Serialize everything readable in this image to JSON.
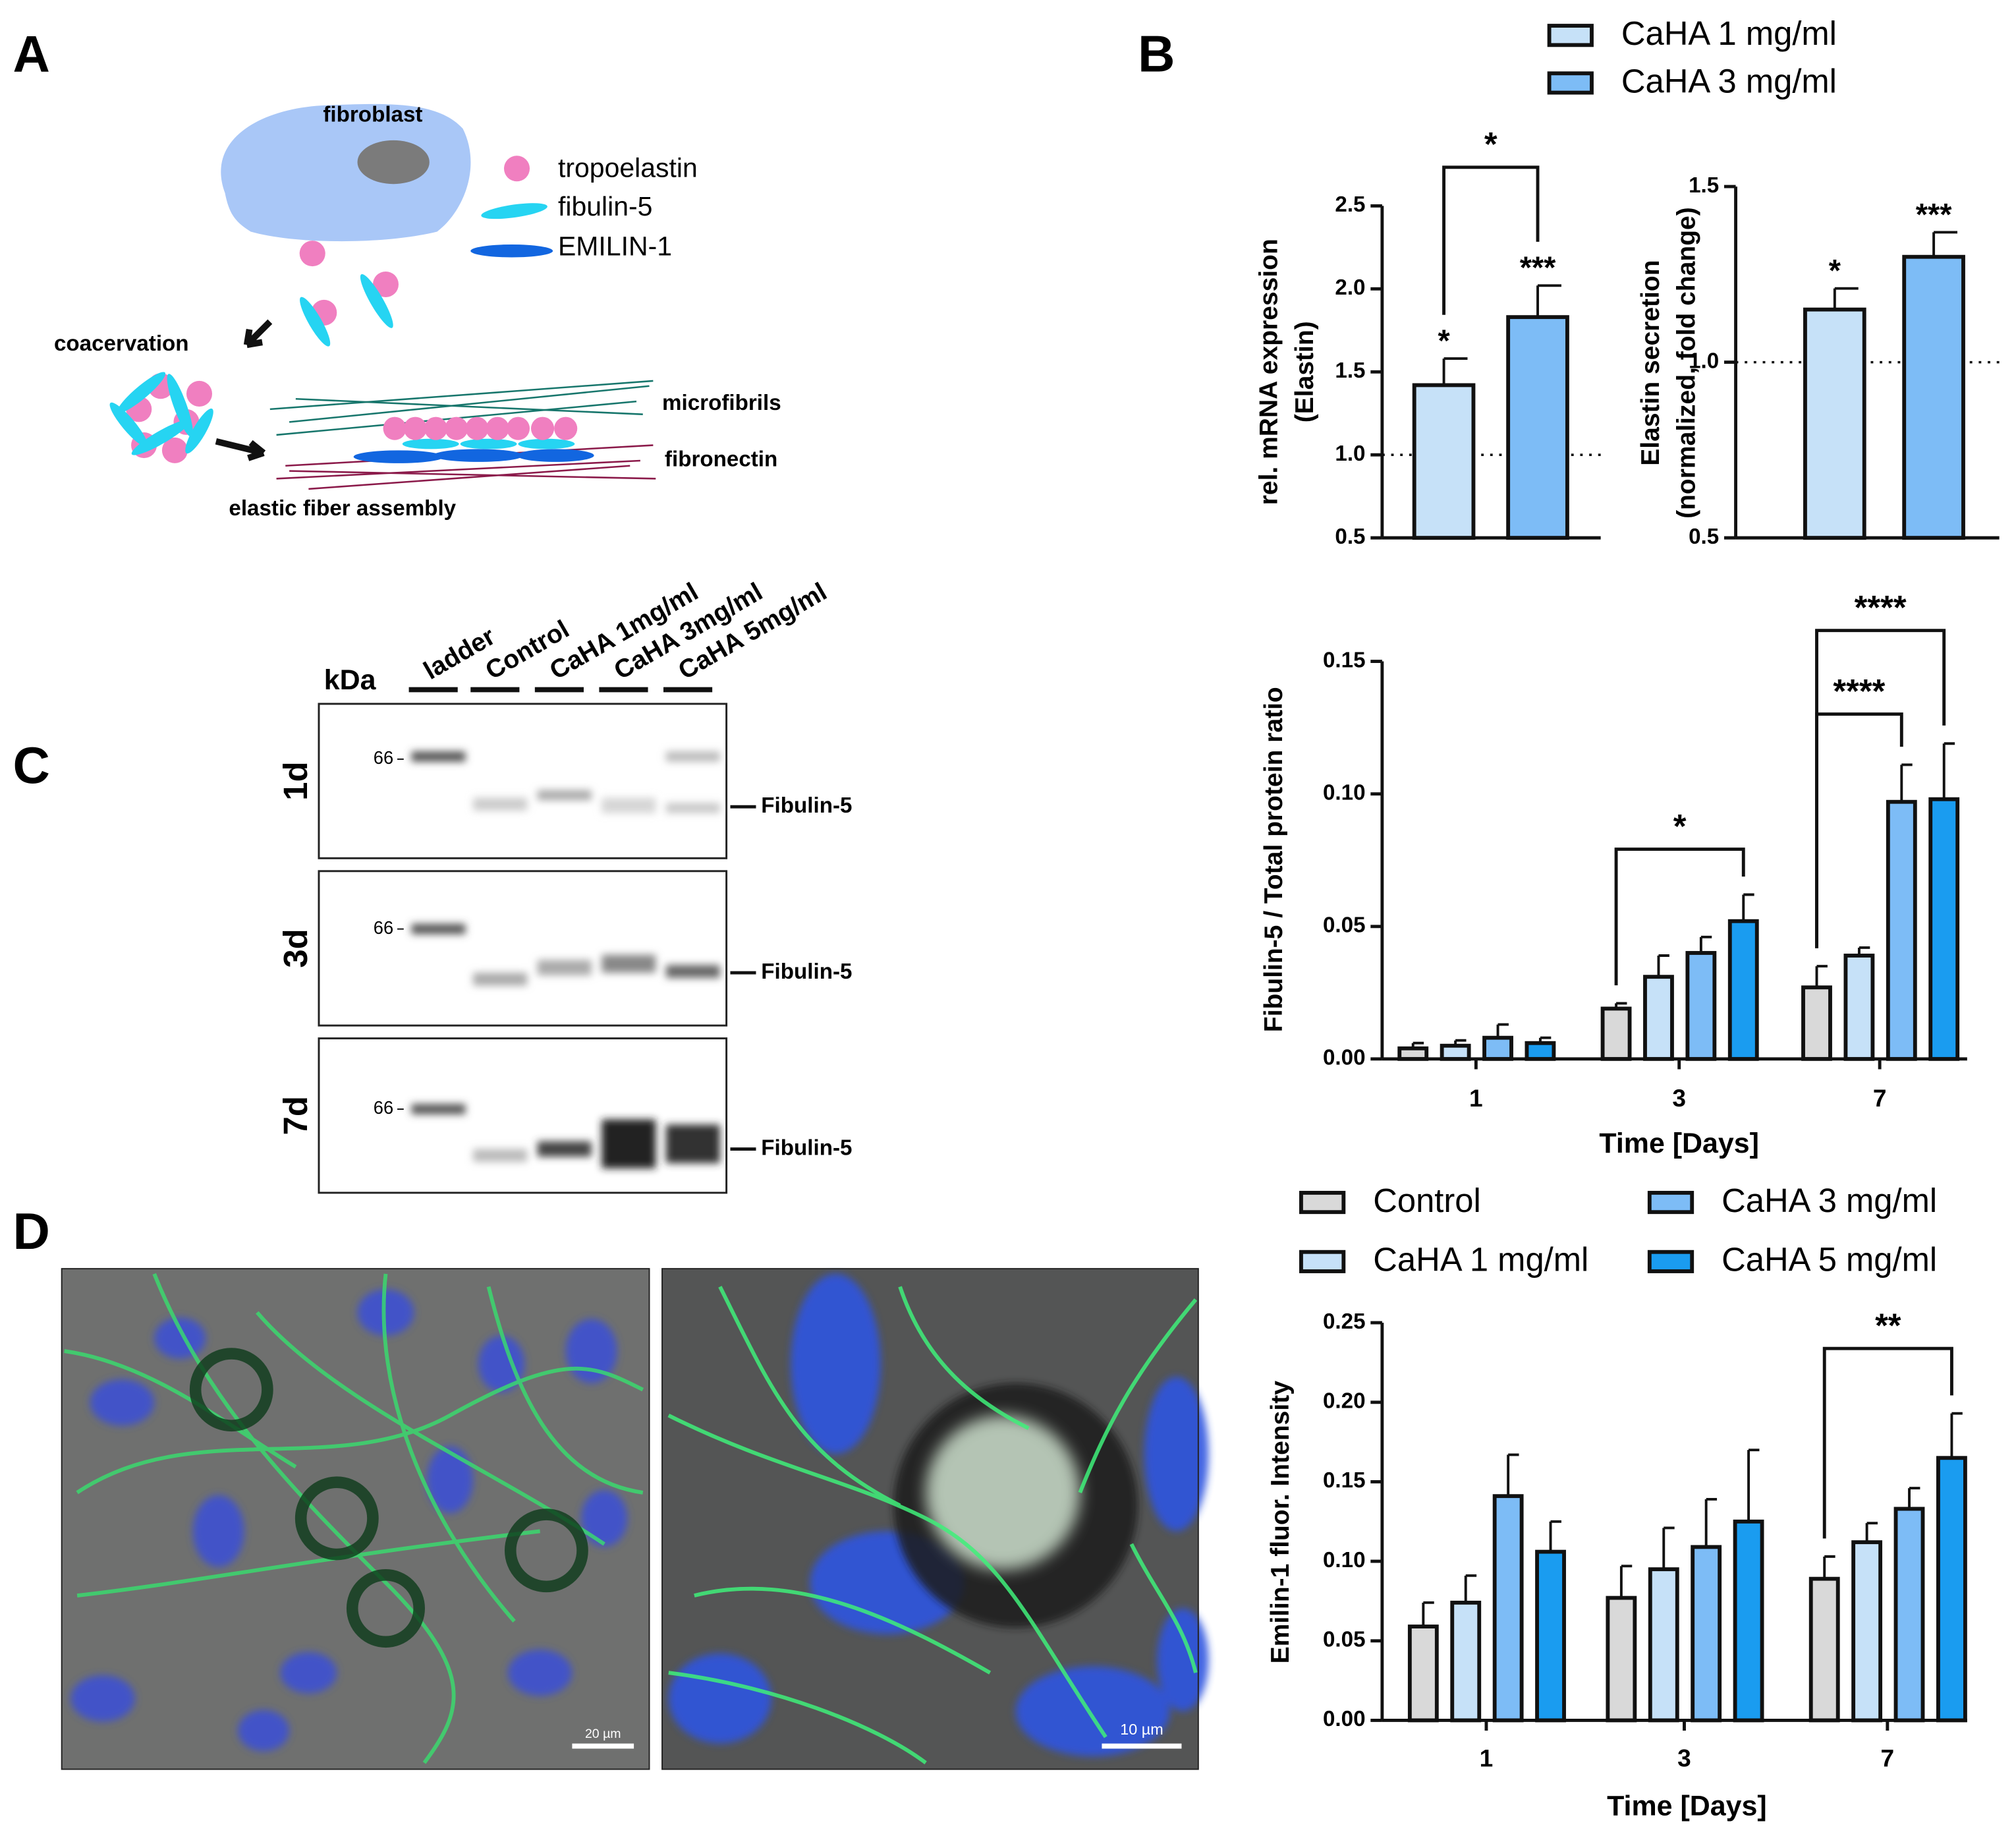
{
  "panel_labels": [
    "A",
    "B",
    "C",
    "D"
  ],
  "diagram": {
    "cell": "fibroblast",
    "legend": [
      "tropoelastin",
      "fibulin-5",
      "EMILIN-1"
    ],
    "step1": "coacervation",
    "microfibrils": "microfibrils",
    "fibronectin": "fibronectin",
    "assembly": "elastic fiber assembly"
  },
  "blot": {
    "unit": "kDa",
    "lanes": [
      "ladder",
      "Control",
      "CaHA 1mg/ml",
      "CaHA 3mg/ml",
      "CaHA 5mg/ml"
    ],
    "rows": [
      "1d",
      "3d",
      "7d"
    ],
    "marker": "66",
    "band": "Fibulin-5"
  },
  "micrographs": {
    "scale_bars": [
      "20 µm",
      "10 µm"
    ]
  },
  "chart_data": [
    {
      "type": "bar",
      "ylabel": [
        "rel. mRNA expression",
        "(Elastin)"
      ],
      "ylim": [
        0.5,
        2.5
      ],
      "yticks": [
        0.5,
        {
          "value": 1,
          "label": "1.0"
        },
        1.5,
        {
          "value": 2,
          "label": "2.0"
        },
        2.5
      ],
      "reference_line": 1,
      "series": [
        {
          "name": "CaHA 1 mg/ml",
          "color": "#c6e1f8",
          "values": [
            1.42
          ],
          "errors": [
            0.16
          ],
          "significance": [
            "*"
          ]
        },
        {
          "name": "CaHA 3 mg/ml",
          "color": "#7dbcf6",
          "values": [
            1.83
          ],
          "errors": [
            0.19
          ],
          "significance": [
            "***"
          ]
        }
      ],
      "annotations": [
        "*"
      ]
    },
    {
      "type": "bar",
      "ylabel": [
        "Elastin secretion",
        "(normalized, fold change)"
      ],
      "ylim": [
        0.5,
        1.5
      ],
      "yticks": [
        0.5,
        {
          "value": 1,
          "label": "1.0"
        },
        1.5
      ],
      "reference_line": 1,
      "series": [
        {
          "color": "#c6e1f8",
          "values": [
            1.15
          ],
          "errors": [
            0.06
          ],
          "significance": [
            "*"
          ]
        },
        {
          "color": "#7dbcf6",
          "values": [
            1.3
          ],
          "errors": [
            0.07
          ],
          "significance": [
            "***"
          ]
        }
      ]
    },
    {
      "type": "bar",
      "ylabel": [
        "Fibulin-5 / Total protein ratio"
      ],
      "xlabel": "Time [Days]",
      "categories": [
        "1",
        "3",
        "7"
      ],
      "ylim": [
        0,
        0.15
      ],
      "yticks": [
        {
          "value": 0,
          "label": "0.00"
        },
        {
          "value": 0.05,
          "label": "0.05"
        },
        {
          "value": 0.1,
          "label": "0.10"
        },
        {
          "value": 0.15,
          "label": "0.15"
        }
      ],
      "series": [
        {
          "name": "Control",
          "color": "#d9d9d9",
          "values": [
            0.004,
            0.019,
            0.027
          ],
          "errors": [
            0.002,
            0.002,
            0.008
          ]
        },
        {
          "name": "CaHA 1 mg/ml",
          "color": "#c6e1f8",
          "values": [
            0.005,
            0.031,
            0.039
          ],
          "errors": [
            0.002,
            0.008,
            0.003
          ]
        },
        {
          "name": "CaHA 3 mg/ml",
          "color": "#7dbcf6",
          "values": [
            0.008,
            0.04,
            0.097
          ],
          "errors": [
            0.005,
            0.006,
            0.014
          ]
        },
        {
          "name": "CaHA 5 mg/ml",
          "color": "#1a9cf0",
          "values": [
            0.006,
            0.052,
            0.098
          ],
          "errors": [
            0.002,
            0.01,
            0.021
          ]
        }
      ],
      "annotations": [
        "*",
        "****",
        "****"
      ]
    },
    {
      "type": "bar",
      "ylabel": [
        "Emilin-1 fluor. Intensity"
      ],
      "xlabel": "Time [Days]",
      "categories": [
        "1",
        "3",
        "7"
      ],
      "ylim": [
        0,
        0.25
      ],
      "yticks": [
        {
          "value": 0,
          "label": "0.00"
        },
        {
          "value": 0.05,
          "label": "0.05"
        },
        {
          "value": 0.1,
          "label": "0.10"
        },
        {
          "value": 0.15,
          "label": "0.15"
        },
        {
          "value": 0.2,
          "label": "0.20"
        },
        {
          "value": 0.25,
          "label": "0.25"
        }
      ],
      "series": [
        {
          "color": "#d9d9d9",
          "values": [
            0.059,
            0.077,
            0.089
          ],
          "errors": [
            0.015,
            0.02,
            0.014
          ]
        },
        {
          "color": "#c6e1f8",
          "values": [
            0.074,
            0.095,
            0.112
          ],
          "errors": [
            0.017,
            0.026,
            0.012
          ]
        },
        {
          "color": "#7dbcf6",
          "values": [
            0.141,
            0.109,
            0.133
          ],
          "errors": [
            0.026,
            0.03,
            0.013
          ]
        },
        {
          "color": "#1a9cf0",
          "values": [
            0.106,
            0.125,
            0.165
          ],
          "errors": [
            0.019,
            0.045,
            0.028
          ]
        }
      ],
      "annotations": [
        "**"
      ]
    }
  ]
}
